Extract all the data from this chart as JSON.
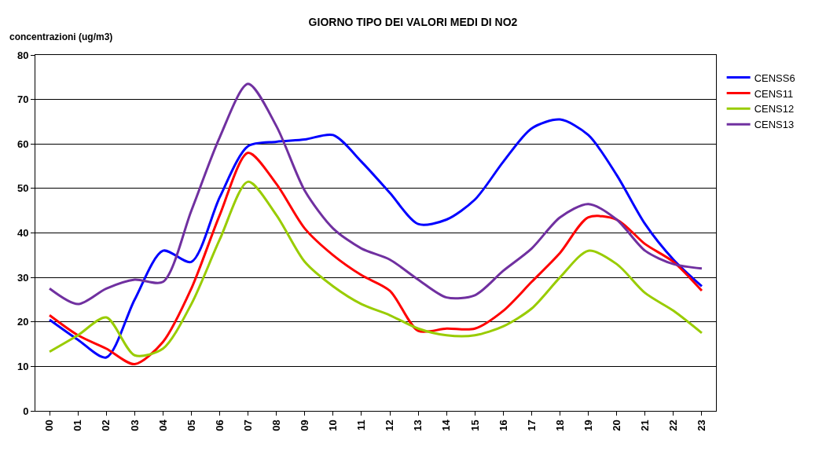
{
  "chart_data": {
    "type": "line",
    "title": "GIORNO TIPO DEI VALORI MEDI DI NO2",
    "ylabel": "concentrazioni (ug/m3)",
    "categories": [
      "00",
      "01",
      "02",
      "03",
      "04",
      "05",
      "06",
      "07",
      "08",
      "09",
      "10",
      "11",
      "12",
      "13",
      "14",
      "15",
      "16",
      "17",
      "18",
      "19",
      "20",
      "21",
      "22",
      "23"
    ],
    "series": [
      {
        "name": "CENSS6",
        "color": "#0000ff",
        "values": [
          20.5,
          16,
          12,
          25,
          36,
          33.5,
          48,
          59.5,
          60.5,
          61,
          62,
          56,
          49,
          42,
          43,
          47.5,
          56,
          63.5,
          65.5,
          62,
          53,
          42,
          34,
          28
        ]
      },
      {
        "name": "CENS11",
        "color": "#ff0000",
        "values": [
          21.5,
          17,
          14,
          10.5,
          15.5,
          27.5,
          44,
          58,
          51,
          41,
          35,
          30.5,
          27,
          18,
          18.5,
          18.5,
          22.5,
          29,
          35.5,
          43.5,
          43,
          37.5,
          33.5,
          27
        ]
      },
      {
        "name": "CENS12",
        "color": "#99cc00",
        "values": [
          13.3,
          17,
          21,
          12.5,
          14,
          24,
          38.5,
          51.5,
          44,
          33.5,
          28,
          24,
          21.5,
          18.5,
          17,
          17,
          19,
          23,
          30,
          36,
          33,
          26.5,
          22.5,
          17.5
        ]
      },
      {
        "name": "CENS13",
        "color": "#7030a0",
        "values": [
          27.5,
          24,
          27.5,
          29.5,
          29,
          45,
          61.5,
          73.5,
          64,
          49.5,
          41,
          36.5,
          34,
          29.5,
          25.5,
          26,
          31.5,
          36.5,
          43.5,
          46.5,
          43,
          36,
          33,
          32
        ]
      }
    ],
    "ylim": [
      0,
      80
    ],
    "yticks": [
      0,
      10,
      20,
      30,
      40,
      50,
      60,
      70,
      80
    ],
    "grid": "y",
    "legend": "top right",
    "marker": "none",
    "line_style": "solid"
  }
}
